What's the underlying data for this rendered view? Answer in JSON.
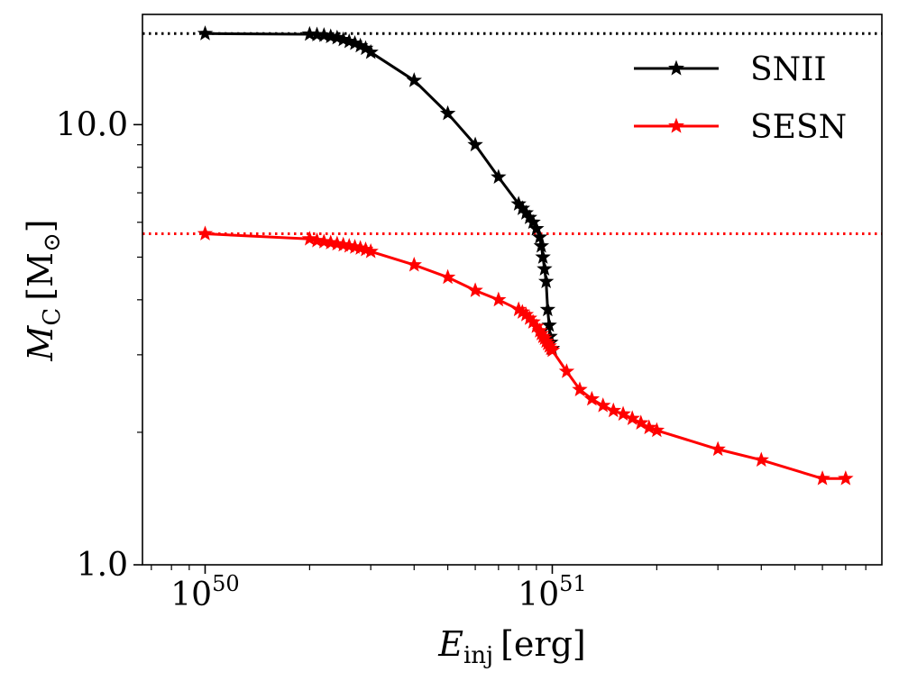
{
  "chart_data": {
    "type": "line",
    "xscale": "log",
    "yscale": "log",
    "xlim": [
      6.6e+49,
      8.9e+51
    ],
    "ylim": [
      1.0,
      17.8
    ],
    "xlabel": {
      "main": "E",
      "sub": "inj",
      "unit": "[erg]"
    },
    "ylabel": {
      "main": "M",
      "sub": "C",
      "unit_open": "[M",
      "unit_sub": "⊙",
      "unit_close": "]"
    },
    "x_ticks": [
      {
        "value": 1e+50,
        "base": "10",
        "exp": "50"
      },
      {
        "value": 1e+51,
        "base": "10",
        "exp": "51"
      }
    ],
    "y_ticks": [
      {
        "value": 1.0,
        "label": "1.0"
      },
      {
        "value": 10.0,
        "label": "10.0"
      }
    ],
    "legend_position": "top-right",
    "series": [
      {
        "name": "SNII",
        "color": "#000000",
        "marker": "star",
        "points": [
          [
            1e+50,
            16.1
          ],
          [
            2e+50,
            16.05
          ],
          [
            2.1e+50,
            16.0
          ],
          [
            2.2e+50,
            15.95
          ],
          [
            2.3e+50,
            15.85
          ],
          [
            2.4e+50,
            15.75
          ],
          [
            2.5e+50,
            15.6
          ],
          [
            2.6e+50,
            15.45
          ],
          [
            2.7e+50,
            15.3
          ],
          [
            2.8e+50,
            15.1
          ],
          [
            2.9e+50,
            14.9
          ],
          [
            3e+50,
            14.6
          ],
          [
            4e+50,
            12.6
          ],
          [
            5e+50,
            10.6
          ],
          [
            6e+50,
            9.0
          ],
          [
            7e+50,
            7.6
          ],
          [
            8e+50,
            6.6
          ],
          [
            8.2e+50,
            6.45
          ],
          [
            8.4e+50,
            6.3
          ],
          [
            8.6e+50,
            6.15
          ],
          [
            8.8e+50,
            6.0
          ],
          [
            9e+50,
            5.8
          ],
          [
            9.2e+50,
            5.55
          ],
          [
            9.3e+50,
            5.3
          ],
          [
            9.4e+50,
            5.0
          ],
          [
            9.5e+50,
            4.7
          ],
          [
            9.6e+50,
            4.4
          ],
          [
            9.7e+50,
            3.8
          ],
          [
            9.8e+50,
            3.5
          ],
          [
            9.85e+50,
            3.3
          ],
          [
            9.9e+50,
            3.2
          ],
          [
            1e+51,
            3.1
          ]
        ]
      },
      {
        "name": "SESN",
        "color": "#ff0000",
        "marker": "star",
        "points": [
          [
            1e+50,
            5.65
          ],
          [
            2e+50,
            5.5
          ],
          [
            2.1e+50,
            5.45
          ],
          [
            2.2e+50,
            5.42
          ],
          [
            2.3e+50,
            5.39
          ],
          [
            2.4e+50,
            5.36
          ],
          [
            2.5e+50,
            5.33
          ],
          [
            2.6e+50,
            5.3
          ],
          [
            2.7e+50,
            5.27
          ],
          [
            2.8e+50,
            5.24
          ],
          [
            2.9e+50,
            5.2
          ],
          [
            3e+50,
            5.15
          ],
          [
            4e+50,
            4.8
          ],
          [
            5e+50,
            4.5
          ],
          [
            6e+50,
            4.2
          ],
          [
            7e+50,
            4.0
          ],
          [
            8e+50,
            3.8
          ],
          [
            8.2e+50,
            3.75
          ],
          [
            8.4e+50,
            3.7
          ],
          [
            8.6e+50,
            3.63
          ],
          [
            8.8e+50,
            3.56
          ],
          [
            9e+50,
            3.48
          ],
          [
            9.2e+50,
            3.4
          ],
          [
            9.3e+50,
            3.35
          ],
          [
            9.4e+50,
            3.3
          ],
          [
            9.5e+50,
            3.27
          ],
          [
            9.6e+50,
            3.22
          ],
          [
            9.7e+50,
            3.18
          ],
          [
            9.8e+50,
            3.14
          ],
          [
            9.9e+50,
            3.1
          ],
          [
            1e+51,
            3.07
          ],
          [
            1.1e+51,
            2.75
          ],
          [
            1.2e+51,
            2.5
          ],
          [
            1.3e+51,
            2.38
          ],
          [
            1.4e+51,
            2.3
          ],
          [
            1.5e+51,
            2.24
          ],
          [
            1.6e+51,
            2.2
          ],
          [
            1.7e+51,
            2.15
          ],
          [
            1.8e+51,
            2.1
          ],
          [
            1.9e+51,
            2.05
          ],
          [
            2e+51,
            2.02
          ],
          [
            3e+51,
            1.83
          ],
          [
            4e+51,
            1.73
          ],
          [
            6e+51,
            1.57
          ],
          [
            7e+51,
            1.57
          ]
        ]
      }
    ],
    "reference_lines": [
      {
        "series": "SNII",
        "y": 16.1,
        "style": "dotted",
        "color": "#000000"
      },
      {
        "series": "SESN",
        "y": 5.65,
        "style": "dotted",
        "color": "#ff0000"
      }
    ]
  }
}
